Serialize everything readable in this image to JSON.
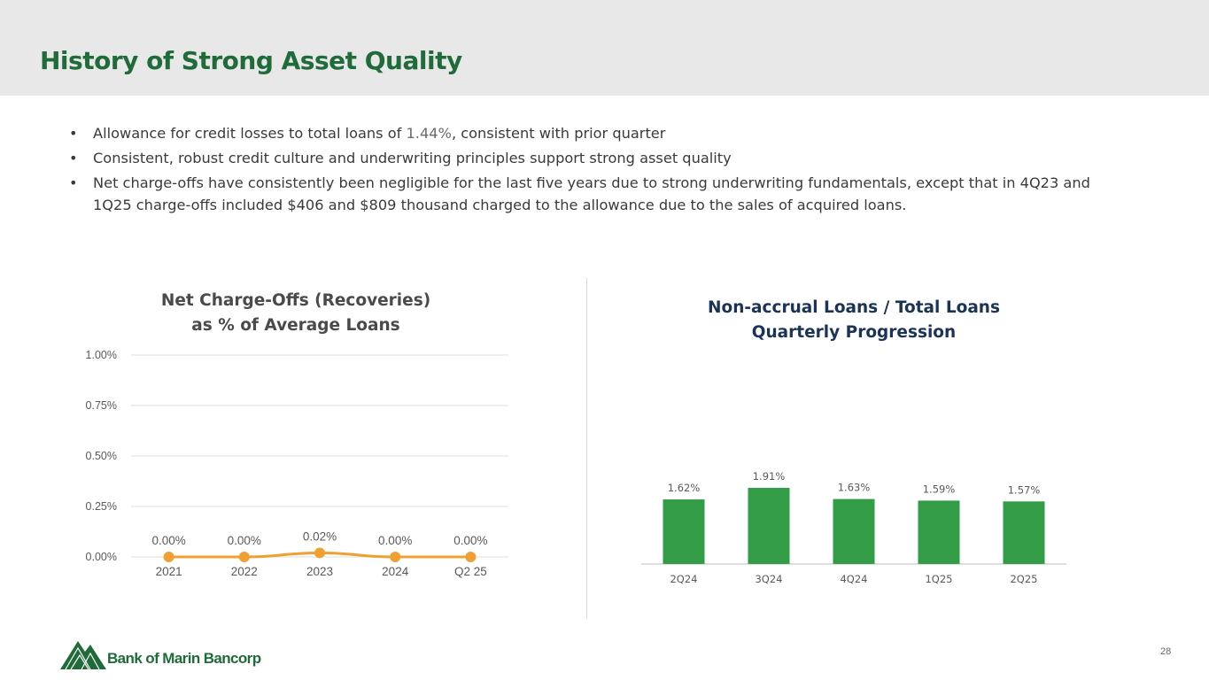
{
  "page": {
    "title": "History of Strong Asset Quality",
    "page_number": "28",
    "logo_text": "Bank of Marin Bancorp"
  },
  "bullets": [
    {
      "prefix": "Allowance for credit losses to total loans of ",
      "highlight": "1.44%",
      "suffix": ", consistent with prior quarter"
    },
    {
      "text": "Consistent, robust credit culture and underwriting principles support strong asset quality"
    },
    {
      "line1": "Net charge-offs have consistently been negligible for the last five years due to strong underwriting fundamentals, except that in 4Q23 and",
      "line2": "1Q25 charge-offs included $406 and $809 thousand charged to the allowance due to the sales of acquired loans."
    }
  ],
  "colors": {
    "brand_green": "#1f6b3a",
    "line_orange": "#f0a030",
    "bar_green": "#339c46",
    "right_title_navy": "#1a3356"
  },
  "chart_data": [
    {
      "type": "line",
      "title": "Net Charge-Offs (Recoveries)",
      "subtitle": "as % of Average Loans",
      "categories": [
        "2021",
        "2022",
        "2023",
        "2024",
        "Q2 25"
      ],
      "values": [
        0.0,
        0.0,
        0.02,
        0.0,
        0.0
      ],
      "data_labels": [
        "0.00%",
        "0.00%",
        "0.02%",
        "0.00%",
        "0.00%"
      ],
      "y_ticks": [
        0.0,
        0.25,
        0.5,
        0.75,
        1.0
      ],
      "y_tick_labels": [
        "0.00%",
        "0.25%",
        "0.50%",
        "0.75%",
        "1.00%"
      ],
      "ylim": [
        0,
        1.0
      ],
      "grid": true,
      "xlabel": "",
      "ylabel": ""
    },
    {
      "type": "bar",
      "title": "Non-accrual Loans / Total Loans",
      "subtitle": "Quarterly Progression",
      "categories": [
        "2Q24",
        "3Q24",
        "4Q24",
        "1Q25",
        "2Q25"
      ],
      "values": [
        0.0162,
        0.0191,
        0.0163,
        0.0159,
        0.0157
      ],
      "data_labels": [
        "1.62%",
        "1.91%",
        "1.63%",
        "1.59%",
        "1.57%"
      ],
      "grid": false,
      "xlabel": "",
      "ylabel": ""
    }
  ]
}
